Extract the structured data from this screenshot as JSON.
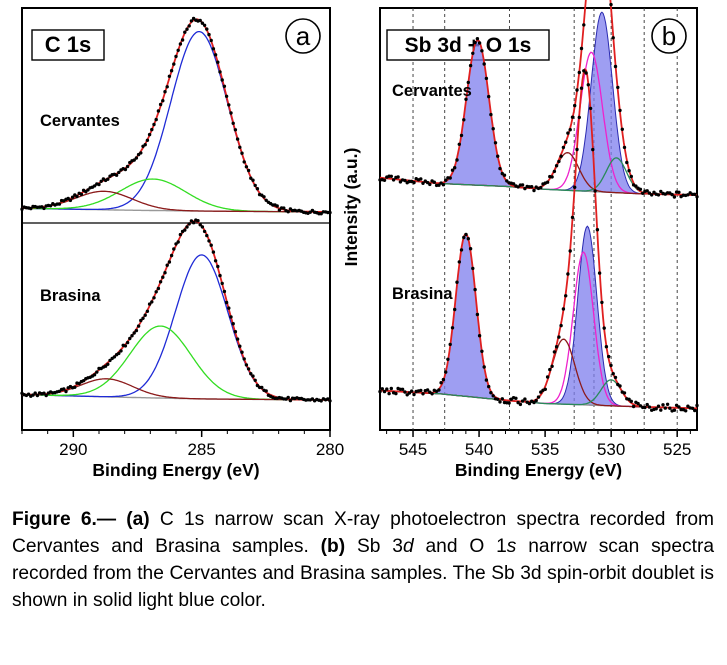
{
  "chart_data": [
    {
      "type": "line",
      "panel_label": "a",
      "title": "C 1s",
      "xlabel": "Binding Energy (eV)",
      "ylabel": "",
      "x_reversed": true,
      "xlim": [
        292,
        280
      ],
      "x_ticks": [
        290,
        285,
        280
      ],
      "x_tick_labels": [
        "290",
        "285",
        "280"
      ],
      "y_ticks_visible": false,
      "spectra": [
        {
          "sample": "Cervantes",
          "background": [
            [
              292,
              0.02
            ],
            [
              288,
              0.01
            ],
            [
              285,
              0.005
            ],
            [
              280,
              0.0
            ]
          ],
          "components": [
            {
              "color": "#1f2bd6",
              "center": 285.1,
              "height": 0.97,
              "fwhm": 2.6
            },
            {
              "color": "#33dd22",
              "center": 286.9,
              "height": 0.17,
              "fwhm": 3.0
            },
            {
              "color": "#8b1a1a",
              "center": 288.8,
              "height": 0.1,
              "fwhm": 2.6
            }
          ]
        },
        {
          "sample": "Brasina",
          "background": [
            [
              292,
              0.03
            ],
            [
              288,
              0.015
            ],
            [
              285,
              0.006
            ],
            [
              280,
              0.0
            ]
          ],
          "components": [
            {
              "color": "#1f2bd6",
              "center": 285.0,
              "height": 0.8,
              "fwhm": 2.4
            },
            {
              "color": "#33dd22",
              "center": 286.6,
              "height": 0.4,
              "fwhm": 2.8
            },
            {
              "color": "#8b1a1a",
              "center": 288.7,
              "height": 0.1,
              "fwhm": 2.4
            }
          ]
        }
      ]
    },
    {
      "type": "line",
      "panel_label": "b",
      "title": "Sb 3d + O 1s",
      "xlabel": "Binding Energy (eV)",
      "ylabel": "Intensity (a.u.)",
      "x_reversed": true,
      "xlim": [
        547.5,
        523.5
      ],
      "x_ticks": [
        545,
        540,
        535,
        530,
        525
      ],
      "x_tick_labels": [
        "545",
        "540",
        "535",
        "530",
        "525"
      ],
      "dashed_reference_lines": [
        545.0,
        542.6,
        537.7,
        532.8,
        531.3,
        530.0,
        527.5,
        525.0
      ],
      "y_ticks_visible": false,
      "spectra": [
        {
          "sample": "Cervantes",
          "background": [
            [
              547.5,
              0.07
            ],
            [
              543,
              0.05
            ],
            [
              538,
              0.04
            ],
            [
              535,
              0.03
            ],
            [
              528,
              0.015
            ],
            [
              523.5,
              0.01
            ]
          ],
          "doublet": [
            {
              "center": 540.1,
              "height": 0.5,
              "fwhm": 2.0
            },
            {
              "center": 530.7,
              "height": 0.62,
              "fwhm": 1.9
            }
          ],
          "components": [
            {
              "color": "#ee22cc",
              "center": 531.5,
              "height": 0.48,
              "fwhm": 2.0
            },
            {
              "color": "#8b1a1a",
              "center": 533.3,
              "height": 0.13,
              "fwhm": 2.0
            },
            {
              "color": "#2a8a5a",
              "center": 529.6,
              "height": 0.12,
              "fwhm": 1.8
            }
          ]
        },
        {
          "sample": "Brasina",
          "background": [
            [
              547.5,
              0.06
            ],
            [
              543,
              0.05
            ],
            [
              538,
              0.03
            ],
            [
              535,
              0.02
            ],
            [
              528,
              0.01
            ],
            [
              523.5,
              0.005
            ]
          ],
          "doublet": [
            {
              "center": 541.0,
              "height": 0.5,
              "fwhm": 1.8
            },
            {
              "center": 531.8,
              "height": 0.55,
              "fwhm": 1.7
            }
          ],
          "components": [
            {
              "color": "#ee22cc",
              "center": 532.1,
              "height": 0.47,
              "fwhm": 1.8
            },
            {
              "color": "#8b1a1a",
              "center": 533.6,
              "height": 0.2,
              "fwhm": 2.0
            },
            {
              "color": "#2a8a5a",
              "center": 530.0,
              "height": 0.08,
              "fwhm": 1.8
            }
          ]
        }
      ]
    }
  ],
  "colors": {
    "raw_data_points": "#000000",
    "fit_envelope": "#e02020",
    "background": "#999999",
    "doublet_fill": "#7d7dee",
    "doublet_stroke": "#2a2ab0"
  },
  "caption": {
    "fig_label": "Figure 6",
    "sep": ".— ",
    "a_tag": "(a)",
    "a_text": " C 1s narrow scan X-ray photoelectron spectra recorded from Cervantes and Brasina samples. ",
    "b_tag": "(b)",
    "b_text_1": " Sb 3",
    "b_it_1": "d",
    "b_text_2": " and O 1",
    "b_it_2": "s",
    "b_text_3": " narrow scan spectra recorded from the Cervantes and Brasina samples. The Sb 3d spin-orbit doublet is shown in solid light blue color."
  }
}
